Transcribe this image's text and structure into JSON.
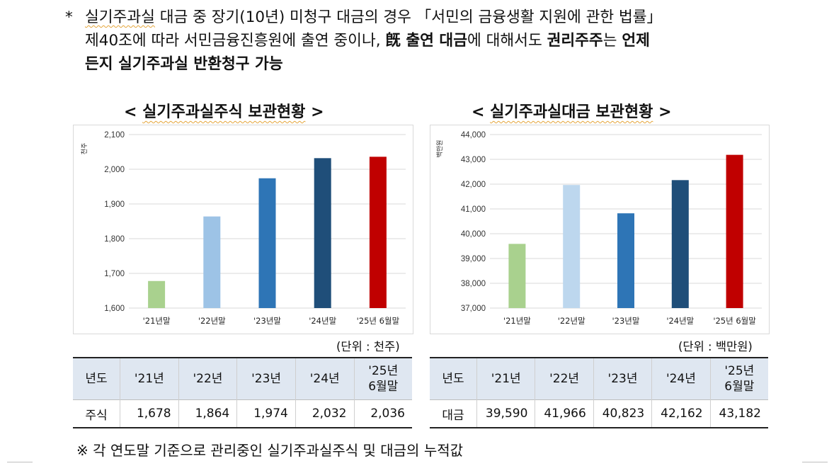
{
  "note": {
    "star": "*",
    "line1": [
      {
        "t": "실기주과실",
        "s": "squig"
      },
      {
        "t": " 대금 중 장기(10년) 미청구 대금의 경우 「서민의 금융생활 지원에 관한 법률」",
        "s": ""
      }
    ],
    "line2": [
      {
        "t": "제40조에 따라 서민금융진흥원에 출연 중이나, ",
        "s": ""
      },
      {
        "t": "旣 출연 대금",
        "s": "bold"
      },
      {
        "t": "에 대해서도 ",
        "s": ""
      },
      {
        "t": "권리주주",
        "s": "bold"
      },
      {
        "t": "는 ",
        "s": ""
      },
      {
        "t": "언제",
        "s": "bold"
      }
    ],
    "line3": [
      {
        "t": "든지 실기주과실 반환청구 가능",
        "s": "bold"
      }
    ]
  },
  "chart_data": [
    {
      "type": "bar",
      "title": "< 실기주과실주식 보관현황 >",
      "title_main": "실기주과실주식 보관현황",
      "ylabel": "천주",
      "categories": [
        "'21년말",
        "'22년말",
        "'23년말",
        "'24년말",
        "'25년 6월말"
      ],
      "values": [
        1678,
        1864,
        1974,
        2032,
        2036
      ],
      "colors": [
        "#a9d18e",
        "#9dc3e6",
        "#2e75b6",
        "#1f4e79",
        "#c00000"
      ],
      "ylim": [
        1600,
        2100
      ],
      "yticks": [
        "1,600",
        "1,700",
        "1,800",
        "1,900",
        "2,000",
        "2,100"
      ],
      "grid": true,
      "unit": "(단위 : 천주)"
    },
    {
      "type": "bar",
      "title": "< 실기주과실대금 보관현황 >",
      "title_main": "실기주과실대금 보관현황",
      "ylabel": "백만원",
      "categories": [
        "'21년말",
        "'22년말",
        "'23년말",
        "'24년말",
        "'25년 6월말"
      ],
      "values": [
        39590,
        41966,
        40823,
        42162,
        43182
      ],
      "colors": [
        "#a9d18e",
        "#bdd7ee",
        "#2e75b6",
        "#1f4e79",
        "#c00000"
      ],
      "ylim": [
        37000,
        44000
      ],
      "yticks": [
        "37,000",
        "38,000",
        "39,000",
        "40,000",
        "41,000",
        "42,000",
        "43,000",
        "44,000"
      ],
      "grid": true,
      "unit": "(단위 : 백만원)"
    }
  ],
  "tables": [
    {
      "head_label": "년도",
      "years": [
        "'21년",
        "'22년",
        "'23년",
        "'24년"
      ],
      "last_year_1": "'25년",
      "last_year_2": "6월말",
      "row_label": "주식",
      "values": [
        "1,678",
        "1,864",
        "1,974",
        "2,032",
        "2,036"
      ]
    },
    {
      "head_label": "년도",
      "years": [
        "'21년",
        "'22년",
        "'23년",
        "'24년"
      ],
      "last_year_1": "'25년",
      "last_year_2": "6월말",
      "row_label": "대금",
      "values": [
        "39,590",
        "41,966",
        "40,823",
        "42,162",
        "43,182"
      ]
    }
  ],
  "footnote": "※ 각 연도말 기준으로 관리중인 실기주과실주식 및 대금의 누적값"
}
